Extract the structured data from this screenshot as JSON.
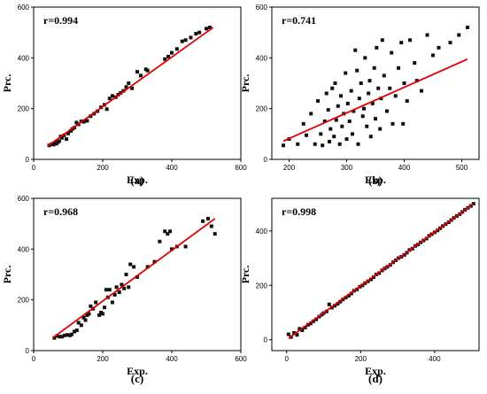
{
  "chart_data": [
    {
      "type": "scatter",
      "panel_label": "(a)",
      "annotation": "r=0.994",
      "xlabel": "Exp.",
      "ylabel": "Prc.",
      "xlim": [
        0,
        600
      ],
      "ylim": [
        0,
        600
      ],
      "xticks": [
        0,
        200,
        400,
        600
      ],
      "yticks": [
        0,
        200,
        400,
        600
      ],
      "fit_line": [
        [
          40,
          52
        ],
        [
          520,
          520
        ]
      ],
      "points": [
        [
          45,
          55
        ],
        [
          52,
          60
        ],
        [
          58,
          58
        ],
        [
          62,
          64
        ],
        [
          66,
          62
        ],
        [
          70,
          68
        ],
        [
          74,
          72
        ],
        [
          78,
          90
        ],
        [
          82,
          85
        ],
        [
          88,
          95
        ],
        [
          95,
          80
        ],
        [
          100,
          102
        ],
        [
          108,
          112
        ],
        [
          112,
          120
        ],
        [
          118,
          125
        ],
        [
          124,
          145
        ],
        [
          130,
          138
        ],
        [
          138,
          150
        ],
        [
          145,
          148
        ],
        [
          155,
          152
        ],
        [
          165,
          170
        ],
        [
          175,
          180
        ],
        [
          185,
          190
        ],
        [
          195,
          205
        ],
        [
          205,
          215
        ],
        [
          212,
          198
        ],
        [
          220,
          240
        ],
        [
          228,
          250
        ],
        [
          238,
          245
        ],
        [
          245,
          255
        ],
        [
          252,
          262
        ],
        [
          260,
          270
        ],
        [
          268,
          285
        ],
        [
          275,
          300
        ],
        [
          285,
          280
        ],
        [
          300,
          345
        ],
        [
          310,
          330
        ],
        [
          325,
          355
        ],
        [
          330,
          350
        ],
        [
          380,
          395
        ],
        [
          390,
          405
        ],
        [
          400,
          420
        ],
        [
          415,
          435
        ],
        [
          430,
          465
        ],
        [
          440,
          470
        ],
        [
          455,
          480
        ],
        [
          470,
          495
        ],
        [
          480,
          500
        ],
        [
          500,
          515
        ],
        [
          510,
          520
        ]
      ]
    },
    {
      "type": "scatter",
      "panel_label": "(b)",
      "annotation": "r=0.741",
      "xlabel": "Exp.",
      "ylabel": "Prc.",
      "xlim": [
        170,
        530
      ],
      "ylim": [
        0,
        600
      ],
      "xticks": [
        200,
        300,
        400,
        500
      ],
      "yticks": [
        0,
        200,
        400,
        600
      ],
      "fit_line": [
        [
          190,
          72
        ],
        [
          510,
          395
        ]
      ],
      "points": [
        [
          190,
          55
        ],
        [
          200,
          80
        ],
        [
          215,
          60
        ],
        [
          225,
          140
        ],
        [
          230,
          95
        ],
        [
          238,
          180
        ],
        [
          245,
          60
        ],
        [
          250,
          230
        ],
        [
          255,
          100
        ],
        [
          258,
          55
        ],
        [
          262,
          150
        ],
        [
          265,
          260
        ],
        [
          268,
          195
        ],
        [
          270,
          70
        ],
        [
          272,
          120
        ],
        [
          275,
          280
        ],
        [
          278,
          90
        ],
        [
          280,
          300
        ],
        [
          282,
          155
        ],
        [
          285,
          210
        ],
        [
          288,
          60
        ],
        [
          290,
          250
        ],
        [
          292,
          130
        ],
        [
          295,
          180
        ],
        [
          298,
          340
        ],
        [
          300,
          80
        ],
        [
          302,
          220
        ],
        [
          305,
          150
        ],
        [
          308,
          270
        ],
        [
          310,
          100
        ],
        [
          312,
          190
        ],
        [
          315,
          430
        ],
        [
          318,
          350
        ],
        [
          320,
          60
        ],
        [
          322,
          240
        ],
        [
          325,
          300
        ],
        [
          328,
          170
        ],
        [
          330,
          200
        ],
        [
          332,
          400
        ],
        [
          335,
          130
        ],
        [
          338,
          260
        ],
        [
          340,
          310
        ],
        [
          342,
          90
        ],
        [
          345,
          220
        ],
        [
          348,
          360
        ],
        [
          350,
          160
        ],
        [
          352,
          440
        ],
        [
          355,
          280
        ],
        [
          358,
          120
        ],
        [
          360,
          240
        ],
        [
          362,
          470
        ],
        [
          365,
          330
        ],
        [
          370,
          190
        ],
        [
          375,
          280
        ],
        [
          378,
          420
        ],
        [
          380,
          140
        ],
        [
          385,
          250
        ],
        [
          390,
          360
        ],
        [
          395,
          460
        ],
        [
          398,
          140
        ],
        [
          400,
          300
        ],
        [
          405,
          230
        ],
        [
          410,
          470
        ],
        [
          418,
          380
        ],
        [
          422,
          310
        ],
        [
          430,
          270
        ],
        [
          440,
          490
        ],
        [
          450,
          410
        ],
        [
          460,
          440
        ],
        [
          480,
          460
        ],
        [
          495,
          490
        ],
        [
          510,
          520
        ]
      ]
    },
    {
      "type": "scatter",
      "panel_label": "(c)",
      "annotation": "r=0.968",
      "xlabel": "Exp.",
      "ylabel": "Prc.",
      "xlim": [
        0,
        600
      ],
      "ylim": [
        0,
        600
      ],
      "xticks": [
        0,
        200,
        400,
        600
      ],
      "yticks": [
        0,
        200,
        400,
        600
      ],
      "fit_line": [
        [
          55,
          50
        ],
        [
          525,
          520
        ]
      ],
      "points": [
        [
          60,
          50
        ],
        [
          68,
          58
        ],
        [
          75,
          55
        ],
        [
          82,
          55
        ],
        [
          90,
          60
        ],
        [
          98,
          62
        ],
        [
          105,
          60
        ],
        [
          110,
          64
        ],
        [
          118,
          75
        ],
        [
          125,
          80
        ],
        [
          130,
          110
        ],
        [
          138,
          100
        ],
        [
          145,
          130
        ],
        [
          150,
          120
        ],
        [
          155,
          140
        ],
        [
          160,
          145
        ],
        [
          165,
          175
        ],
        [
          172,
          165
        ],
        [
          180,
          190
        ],
        [
          190,
          140
        ],
        [
          195,
          150
        ],
        [
          200,
          145
        ],
        [
          205,
          170
        ],
        [
          210,
          240
        ],
        [
          215,
          210
        ],
        [
          220,
          240
        ],
        [
          228,
          190
        ],
        [
          235,
          220
        ],
        [
          240,
          250
        ],
        [
          248,
          230
        ],
        [
          255,
          260
        ],
        [
          262,
          245
        ],
        [
          268,
          300
        ],
        [
          275,
          250
        ],
        [
          280,
          340
        ],
        [
          290,
          330
        ],
        [
          300,
          290
        ],
        [
          330,
          330
        ],
        [
          350,
          350
        ],
        [
          365,
          430
        ],
        [
          380,
          470
        ],
        [
          388,
          460
        ],
        [
          395,
          470
        ],
        [
          400,
          400
        ],
        [
          415,
          410
        ],
        [
          440,
          410
        ],
        [
          490,
          510
        ],
        [
          505,
          520
        ],
        [
          515,
          490
        ],
        [
          525,
          460
        ]
      ]
    },
    {
      "type": "scatter",
      "panel_label": "(d)",
      "annotation": "r=0.998",
      "xlabel": "Exp.",
      "ylabel": "Prc.",
      "xlim": [
        -40,
        520
      ],
      "ylim": [
        -40,
        520
      ],
      "xticks": [
        0,
        200,
        400
      ],
      "yticks": [
        0,
        200,
        400
      ],
      "fit_line": [
        [
          5,
          5
        ],
        [
          505,
          500
        ]
      ],
      "points": [
        [
          5,
          20
        ],
        [
          12,
          10
        ],
        [
          20,
          25
        ],
        [
          28,
          18
        ],
        [
          35,
          40
        ],
        [
          42,
          35
        ],
        [
          50,
          45
        ],
        [
          58,
          55
        ],
        [
          65,
          60
        ],
        [
          72,
          68
        ],
        [
          80,
          75
        ],
        [
          88,
          85
        ],
        [
          95,
          92
        ],
        [
          100,
          98
        ],
        [
          108,
          104
        ],
        [
          115,
          130
        ],
        [
          122,
          118
        ],
        [
          130,
          125
        ],
        [
          138,
          132
        ],
        [
          145,
          140
        ],
        [
          152,
          148
        ],
        [
          160,
          155
        ],
        [
          168,
          162
        ],
        [
          175,
          170
        ],
        [
          182,
          180
        ],
        [
          190,
          185
        ],
        [
          198,
          195
        ],
        [
          205,
          200
        ],
        [
          212,
          208
        ],
        [
          220,
          215
        ],
        [
          228,
          222
        ],
        [
          235,
          230
        ],
        [
          242,
          240
        ],
        [
          250,
          245
        ],
        [
          258,
          255
        ],
        [
          265,
          262
        ],
        [
          272,
          268
        ],
        [
          280,
          275
        ],
        [
          288,
          285
        ],
        [
          295,
          292
        ],
        [
          302,
          300
        ],
        [
          310,
          305
        ],
        [
          318,
          312
        ],
        [
          325,
          320
        ],
        [
          332,
          330
        ],
        [
          340,
          335
        ],
        [
          348,
          345
        ],
        [
          355,
          350
        ],
        [
          362,
          358
        ],
        [
          370,
          365
        ],
        [
          378,
          372
        ],
        [
          385,
          382
        ],
        [
          392,
          388
        ],
        [
          400,
          395
        ],
        [
          408,
          402
        ],
        [
          415,
          410
        ],
        [
          422,
          418
        ],
        [
          430,
          425
        ],
        [
          438,
          432
        ],
        [
          445,
          440
        ],
        [
          452,
          448
        ],
        [
          460,
          455
        ],
        [
          468,
          462
        ],
        [
          475,
          470
        ],
        [
          482,
          478
        ],
        [
          490,
          485
        ],
        [
          498,
          492
        ],
        [
          505,
          500
        ]
      ]
    }
  ]
}
